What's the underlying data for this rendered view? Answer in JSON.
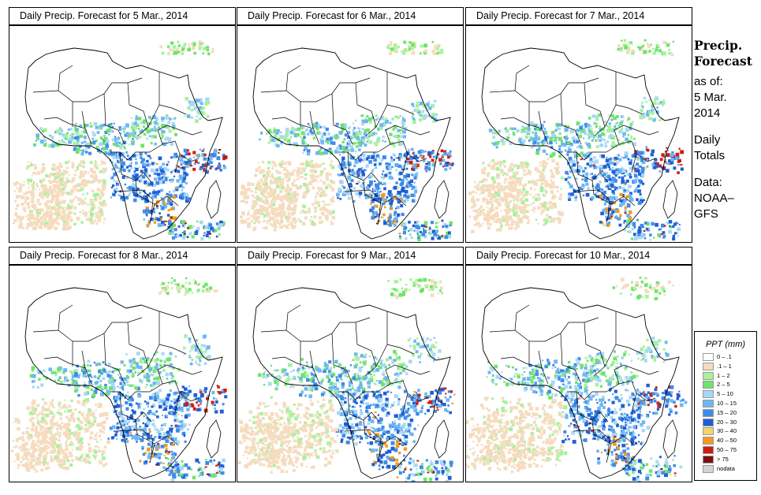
{
  "panels": [
    {
      "title": "Daily Precip. Forecast for  5 Mar., 2014",
      "day": 5
    },
    {
      "title": "Daily Precip. Forecast for  6 Mar., 2014",
      "day": 6
    },
    {
      "title": "Daily Precip. Forecast for  7 Mar., 2014",
      "day": 7
    },
    {
      "title": "Daily Precip. Forecast for  8 Mar., 2014",
      "day": 8
    },
    {
      "title": "Daily Precip. Forecast for  9 Mar., 2014",
      "day": 9
    },
    {
      "title": "Daily Precip. Forecast for  10 Mar., 2014",
      "day": 10
    }
  ],
  "sidebar": {
    "heading_line1": "Precip.",
    "heading_line2": "Forecast",
    "asof_line1": "as of:",
    "asof_line2": "5 Mar.",
    "asof_line3": "2014",
    "totals_line1": "Daily",
    "totals_line2": "Totals",
    "data_line1": "Data:",
    "data_line2": "NOAA–",
    "data_line3": "GFS"
  },
  "legend": {
    "title": "PPT (mm)",
    "items": [
      {
        "label": "0 – .1",
        "color": "#ffffff"
      },
      {
        "label": ".1 – 1",
        "color": "#f5dcbf"
      },
      {
        "label": "1 – 2",
        "color": "#a7f29c"
      },
      {
        "label": "2 – 5",
        "color": "#6fe46a"
      },
      {
        "label": "5 – 10",
        "color": "#a8d8f6"
      },
      {
        "label": "10 – 15",
        "color": "#6fb7ef"
      },
      {
        "label": "15 – 20",
        "color": "#3f8ce8"
      },
      {
        "label": "20 – 30",
        "color": "#1f5fd6"
      },
      {
        "label": "30 – 40",
        "color": "#f5d36a"
      },
      {
        "label": "40 – 50",
        "color": "#f59a1e"
      },
      {
        "label": "50 – 75",
        "color": "#d11d0f"
      },
      {
        "label": "> 75",
        "color": "#7d0f0f"
      },
      {
        "label": "nodata",
        "color": "#d4d4d4"
      }
    ]
  },
  "colors": {
    "border": "#000000",
    "ocean": "#ffffff",
    "land": "#ffffff"
  }
}
